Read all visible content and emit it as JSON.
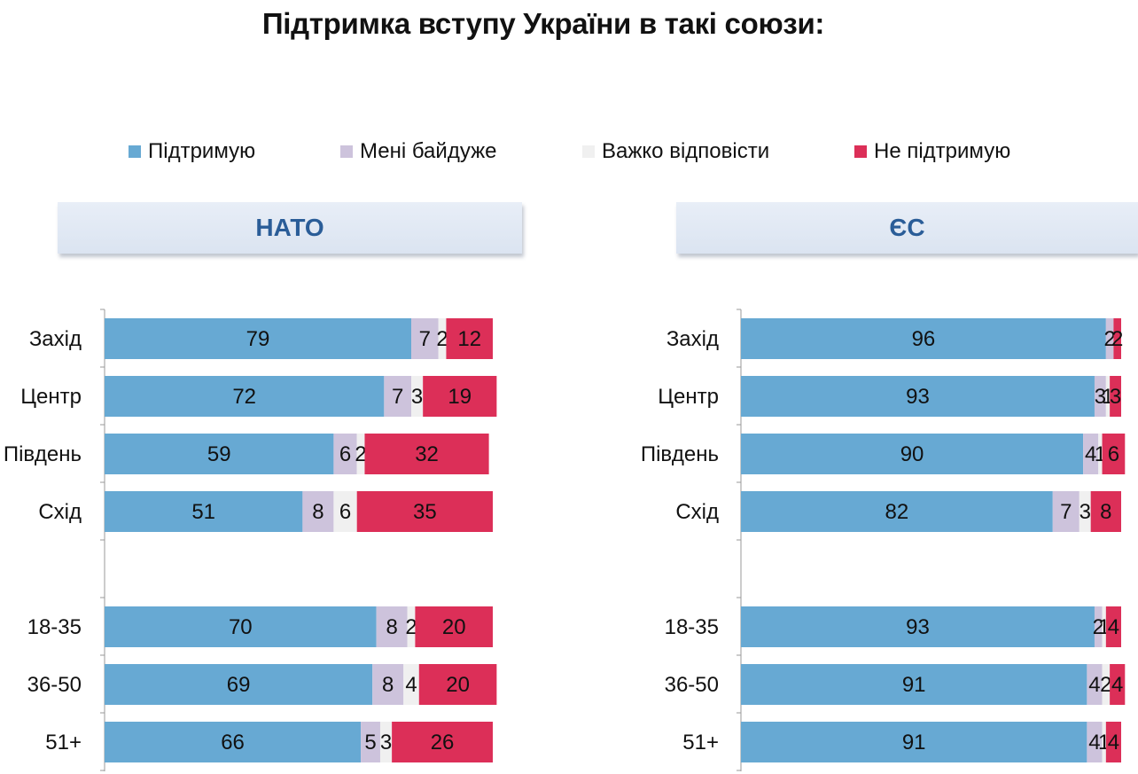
{
  "title": "Підтримка вступу України в такі союзи:",
  "legend": [
    {
      "label": "Підтримую",
      "color": "#67a9d3"
    },
    {
      "label": "Мені байдуже",
      "color": "#cdc3dc"
    },
    {
      "label": "Важко відповісти",
      "color": "#f0f0f0"
    },
    {
      "label": "Не підтримую",
      "color": "#dc2f58"
    }
  ],
  "chart_data": [
    {
      "type": "bar",
      "stacked": true,
      "orientation": "horizontal",
      "title": "НАТО",
      "categories": [
        "Захід",
        "Центр",
        "Південь",
        "Схід",
        "18-35",
        "36-50",
        "51+"
      ],
      "series": [
        {
          "name": "Підтримую",
          "values": [
            79,
            72,
            59,
            51,
            70,
            69,
            66
          ]
        },
        {
          "name": "Мені байдуже",
          "values": [
            7,
            7,
            6,
            8,
            8,
            8,
            5
          ]
        },
        {
          "name": "Важко відповісти",
          "values": [
            2,
            3,
            2,
            6,
            2,
            4,
            3
          ]
        },
        {
          "name": "Не підтримую",
          "values": [
            12,
            19,
            32,
            35,
            20,
            20,
            26
          ]
        }
      ],
      "xlim": [
        0,
        100
      ]
    },
    {
      "type": "bar",
      "stacked": true,
      "orientation": "horizontal",
      "title": "ЄС",
      "categories": [
        "Захід",
        "Центр",
        "Південь",
        "Схід",
        "18-35",
        "36-50",
        "51+"
      ],
      "series": [
        {
          "name": "Підтримую",
          "values": [
            96,
            93,
            90,
            82,
            93,
            91,
            91
          ]
        },
        {
          "name": "Мені байдуже",
          "values": [
            2,
            3,
            4,
            7,
            2,
            4,
            4
          ]
        },
        {
          "name": "Важко відповісти",
          "values": [
            0,
            1,
            1,
            3,
            1,
            2,
            1
          ]
        },
        {
          "name": "Не підтримую",
          "values": [
            2,
            3,
            6,
            8,
            4,
            4,
            4
          ]
        }
      ],
      "xlim": [
        0,
        100
      ]
    }
  ]
}
